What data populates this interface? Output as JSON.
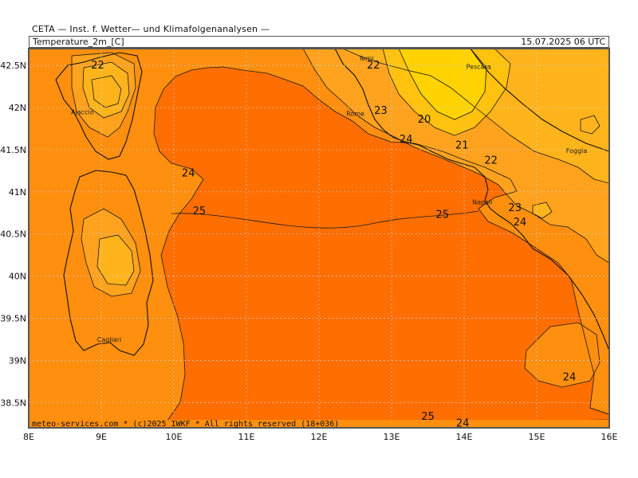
{
  "header": {
    "institute": "CETA — Inst. f. Wetter— und Klimafolgenanalysen —",
    "variable": "Temperature_2m_[C]",
    "valid_time": "15.07.2025 06 UTC"
  },
  "colors": {
    "t25": "#ff6e00",
    "t24": "#ff8f0e",
    "t23": "#ffa21e",
    "t22": "#ffb41c",
    "t21": "#ffc20e",
    "t20": "#ffd200",
    "contour": "#1a1a1a",
    "coast": "#111111",
    "grid": "#c9c9c9",
    "border": "#555555"
  },
  "axes": {
    "lon_labels": [
      "8E",
      "9E",
      "10E",
      "11E",
      "12E",
      "13E",
      "14E",
      "15E",
      "16E"
    ],
    "lat_labels": [
      "42.5N",
      "42N",
      "41.5N",
      "41N",
      "40.5N",
      "40N",
      "39.5N",
      "39N",
      "38.5N"
    ],
    "lon_range": [
      8,
      16
    ],
    "lat_range": [
      38.2,
      42.7
    ]
  },
  "cities": [
    {
      "name": "Terni",
      "lon": 12.65,
      "lat": 42.56
    },
    {
      "name": "Pescara",
      "lon": 14.2,
      "lat": 42.46
    },
    {
      "name": "Ajaccio",
      "lon": 8.74,
      "lat": 41.92
    },
    {
      "name": "Rome",
      "lon": 12.5,
      "lat": 41.9
    },
    {
      "name": "Foggia",
      "lon": 15.55,
      "lat": 41.46
    },
    {
      "name": "Napoli",
      "lon": 14.25,
      "lat": 40.85
    },
    {
      "name": "Cagliari",
      "lon": 9.11,
      "lat": 39.22
    }
  ],
  "contour_labels": [
    {
      "text": "22",
      "lon": 8.95,
      "lat": 42.51
    },
    {
      "text": "22",
      "lon": 12.75,
      "lat": 42.51
    },
    {
      "text": "23",
      "lon": 12.85,
      "lat": 41.97
    },
    {
      "text": "20",
      "lon": 13.45,
      "lat": 41.87
    },
    {
      "text": "24",
      "lon": 13.2,
      "lat": 41.63
    },
    {
      "text": "21",
      "lon": 13.97,
      "lat": 41.56
    },
    {
      "text": "22",
      "lon": 14.37,
      "lat": 41.38
    },
    {
      "text": "24",
      "lon": 10.2,
      "lat": 41.23
    },
    {
      "text": "25",
      "lon": 10.35,
      "lat": 40.78
    },
    {
      "text": "25",
      "lon": 13.7,
      "lat": 40.74
    },
    {
      "text": "23",
      "lon": 14.7,
      "lat": 40.82
    },
    {
      "text": "24",
      "lon": 14.77,
      "lat": 40.65
    },
    {
      "text": "24",
      "lon": 15.45,
      "lat": 38.81
    },
    {
      "text": "25",
      "lon": 13.5,
      "lat": 38.34
    },
    {
      "text": "24",
      "lon": 13.98,
      "lat": 38.26
    }
  ],
  "footer": "meteo-services.com * (c)2025 IWKF * All rights reserved (18+036)"
}
